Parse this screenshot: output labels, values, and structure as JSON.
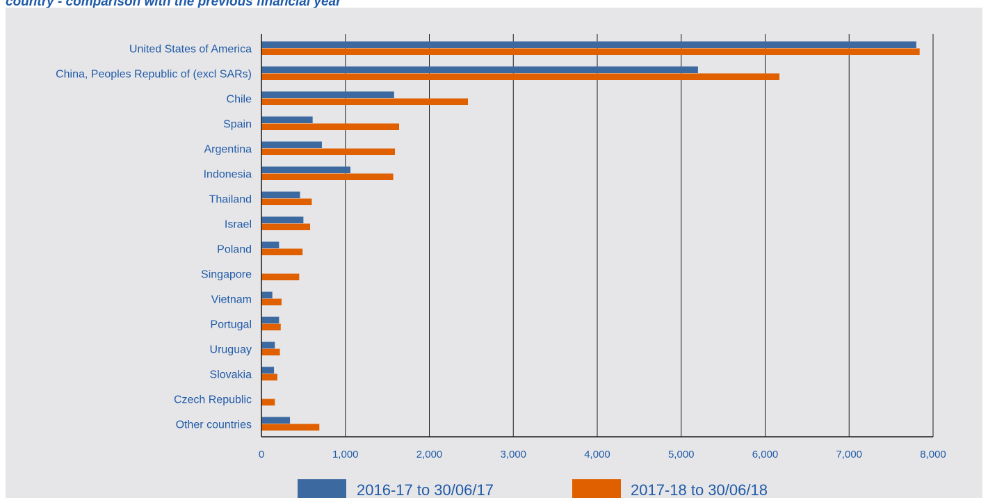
{
  "heading": "country - comparison with the previous financial year",
  "chart_data": {
    "type": "bar",
    "orientation": "horizontal",
    "categories": [
      "United States of America",
      "China, Peoples Republic of (excl SARs)",
      "Chile",
      "Spain",
      "Argentina",
      "Indonesia",
      "Thailand",
      "Israel",
      "Poland",
      "Singapore",
      "Vietnam",
      "Portugal",
      "Uruguay",
      "Slovakia",
      "Czech Republic",
      "Other countries"
    ],
    "series": [
      {
        "name": "2016-17 to 30/06/17",
        "color": "#3c6aa0",
        "values": [
          7800,
          5200,
          1580,
          610,
          720,
          1060,
          460,
          500,
          210,
          0,
          130,
          210,
          160,
          150,
          0,
          340
        ]
      },
      {
        "name": "2017-18 to 30/06/18",
        "color": "#e06000",
        "values": [
          7840,
          6170,
          2460,
          1640,
          1590,
          1570,
          600,
          580,
          490,
          450,
          240,
          230,
          220,
          190,
          160,
          690
        ]
      }
    ],
    "xlim": [
      0,
      8000
    ],
    "xticks": [
      0,
      1000,
      2000,
      3000,
      4000,
      5000,
      6000,
      7000,
      8000
    ],
    "xtick_labels": [
      "0",
      "1,000",
      "2,000",
      "3,000",
      "4,000",
      "5,000",
      "6,000",
      "7,000",
      "8,000"
    ],
    "grid": "vertical",
    "legend_position": "bottom",
    "background": "#e6e6e8"
  }
}
